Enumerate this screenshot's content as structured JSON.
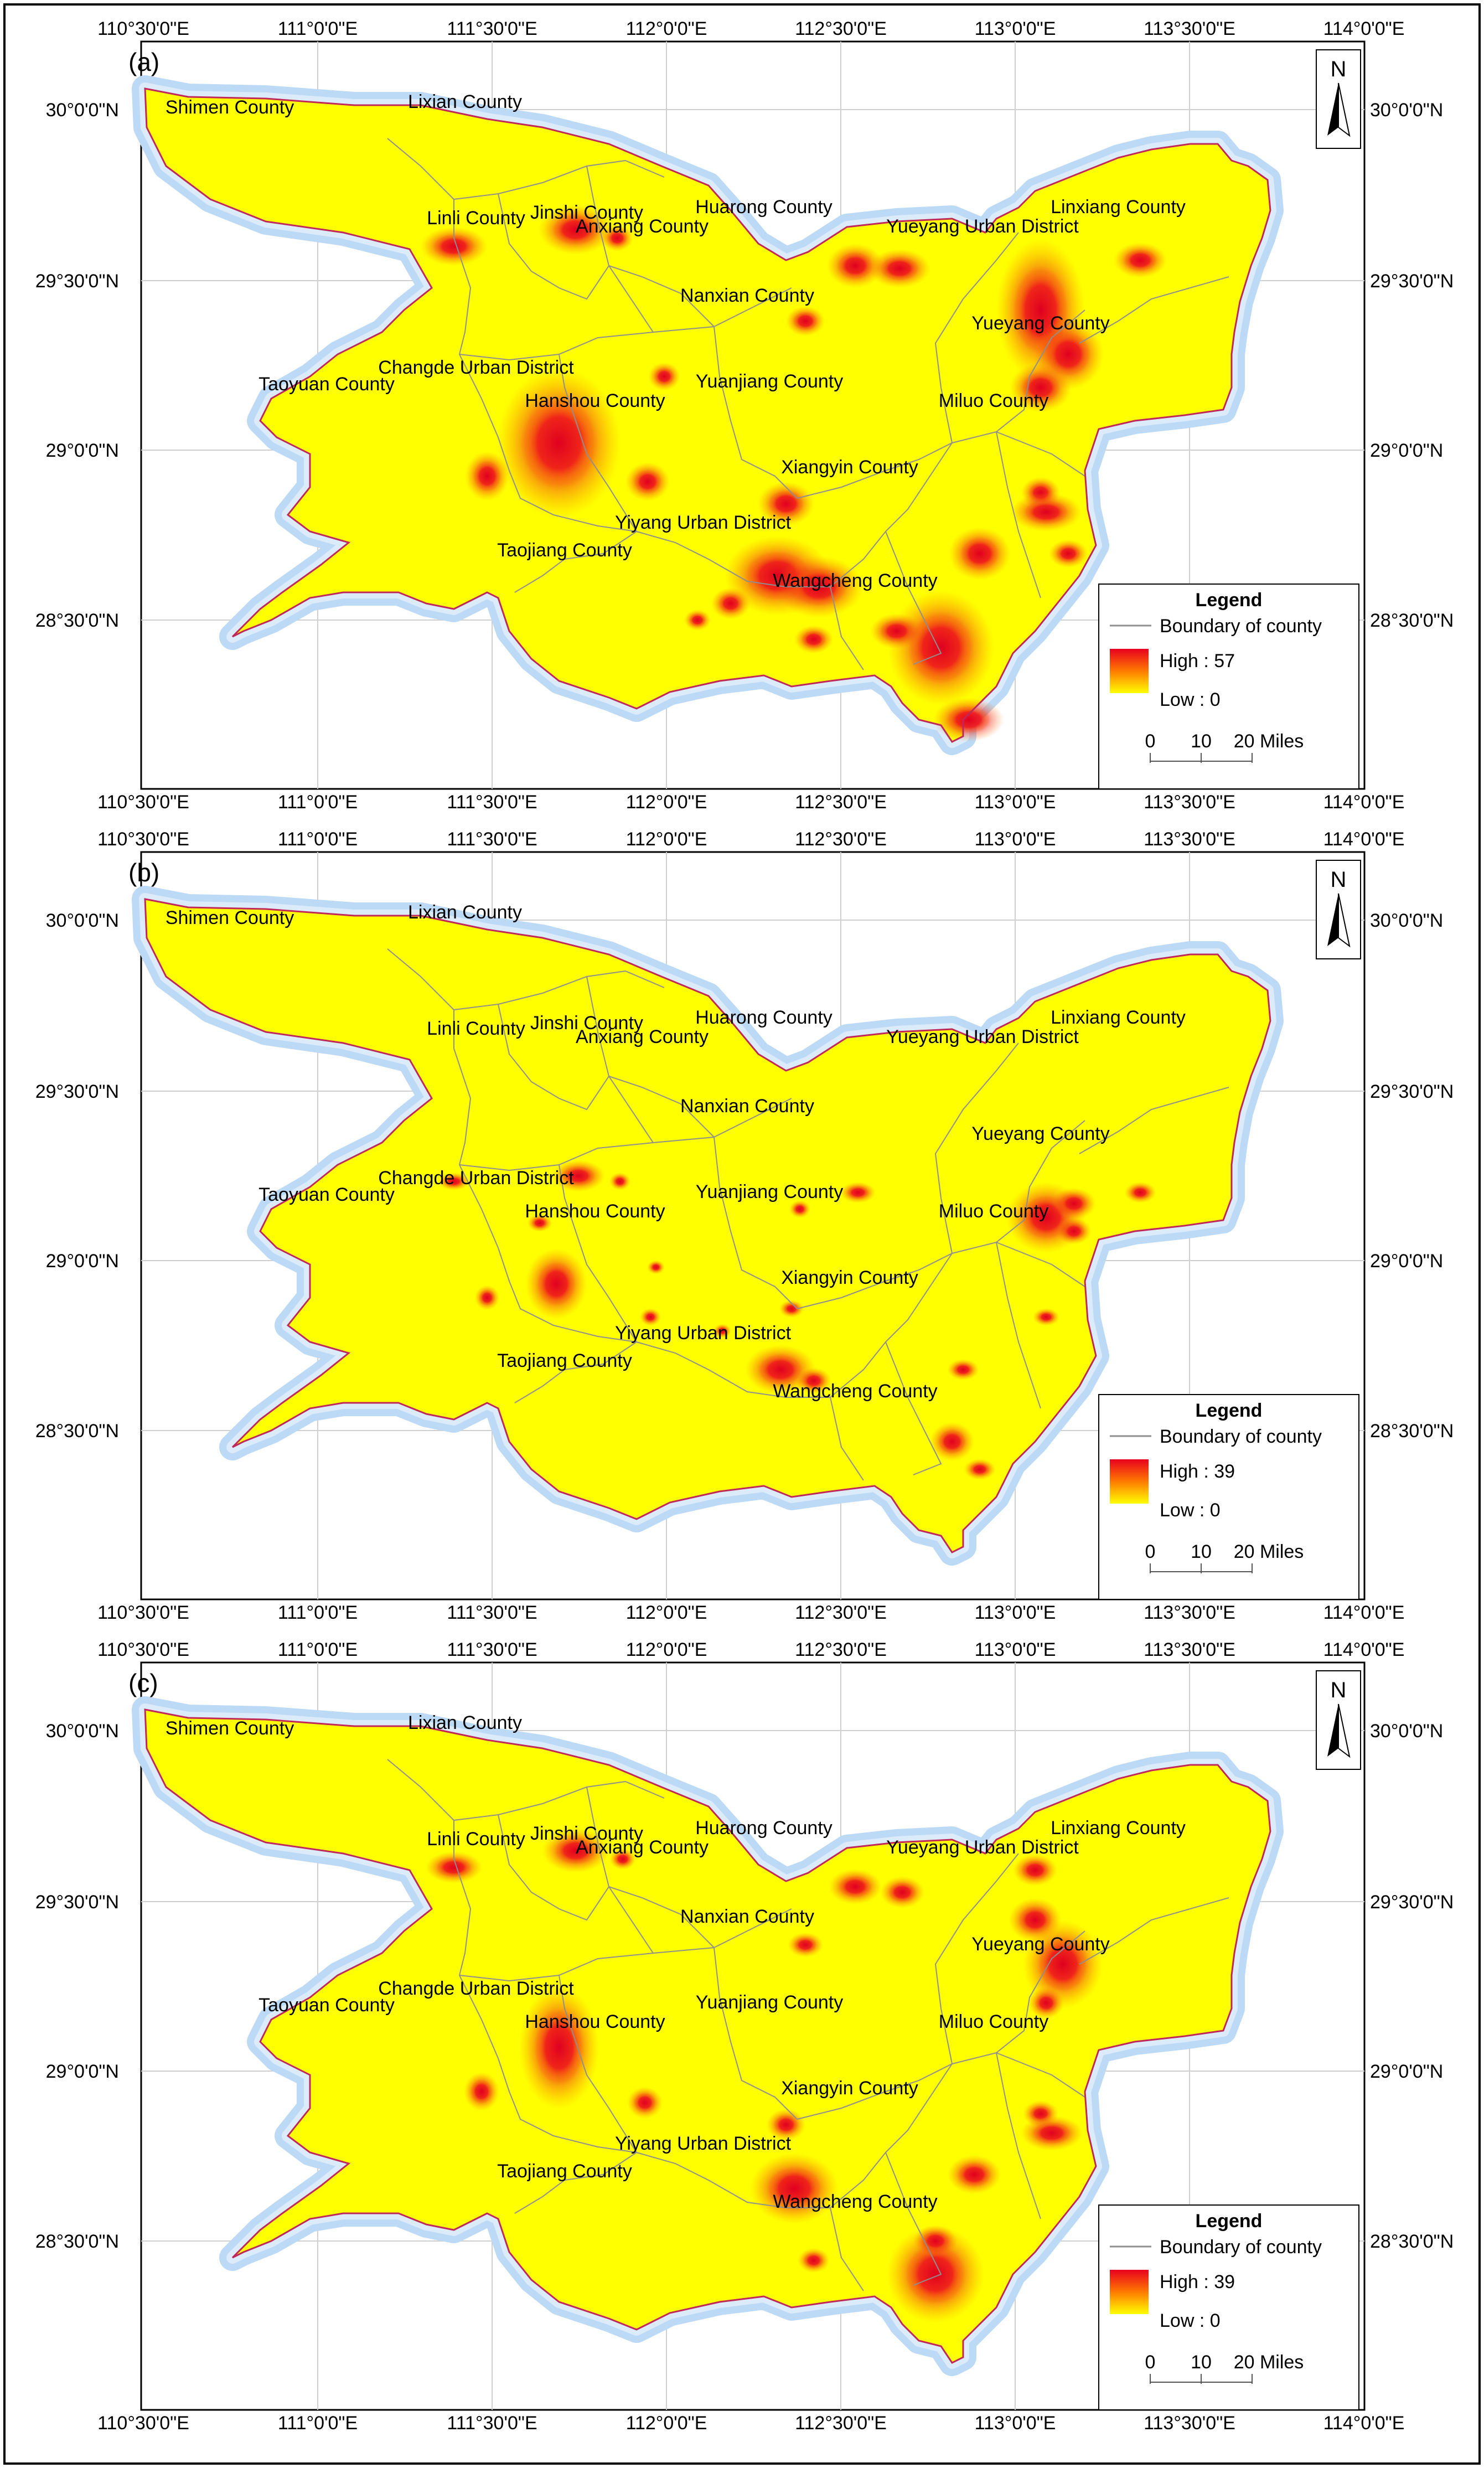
{
  "panels": [
    {
      "label": "(a)",
      "legend_high": "High : 57"
    },
    {
      "label": "(b)",
      "legend_high": "High : 39"
    },
    {
      "label": "(c)",
      "legend_high": "High : 39"
    }
  ],
  "lon_labels": [
    "110°30'0\"E",
    "111°0'0\"E",
    "111°30'0\"E",
    "112°0'0\"E",
    "112°30'0\"E",
    "113°0'0\"E",
    "113°30'0\"E",
    "114°0'0\"E"
  ],
  "lat_labels": [
    "30°0'0\"N",
    "29°30'0\"N",
    "29°0'0\"N",
    "28°30'0\"N"
  ],
  "legend": {
    "title": "Legend",
    "boundary": "Boundary of county",
    "low": "Low : 0",
    "scale_ticks": [
      "0",
      "10",
      "20 Miles"
    ]
  },
  "north_label": "N",
  "counties": [
    "Shimen County",
    "Lixian County",
    "Linli County",
    "Jinshi County",
    "Anxiang County",
    "Huarong County",
    "Linxiang County",
    "Yueyang Urban District",
    "Nanxian County",
    "Yueyang County",
    "Changde Urban District",
    "Taoyuan County",
    "Hanshou County",
    "Yuanjiang County",
    "Miluo County",
    "Xiangyin County",
    "Yiyang Urban District",
    "Taojiang County",
    "Wangcheng County"
  ],
  "colors": {
    "fill": "#ffff00",
    "hot": "#e8001e",
    "halo": "#b9d8f5",
    "outline": "#cc2255",
    "frame": "#000000"
  }
}
